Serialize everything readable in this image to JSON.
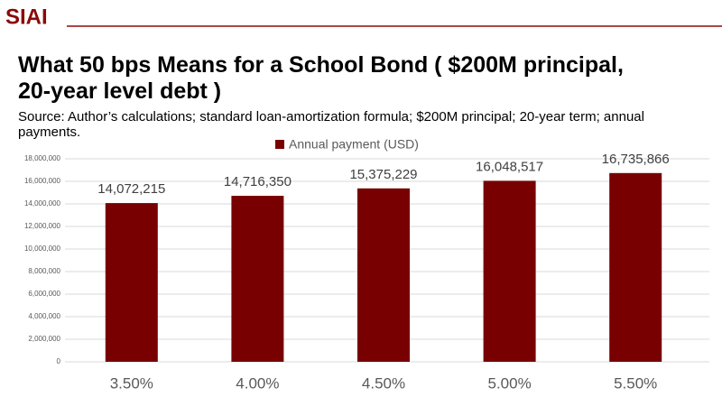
{
  "logo": "SIAI",
  "chart_data": {
    "type": "bar",
    "title": "What 50 bps Means for a School Bond ( $200M principal, 20-year level debt )",
    "subtitle": "Source: Author’s calculations; standard loan-amortization formula; $200M principal; 20-year term; annual payments.",
    "categories": [
      "3.50%",
      "4.00%",
      "4.50%",
      "5.00%",
      "5.50%"
    ],
    "series": [
      {
        "name": "Annual payment (USD)",
        "color": "#780000",
        "values": [
          14072215,
          14716350,
          15375229,
          16048517,
          16735866
        ],
        "value_labels": [
          "14,072,215",
          "14,716,350",
          "15,375,229",
          "16,048,517",
          "16,735,866"
        ]
      }
    ],
    "ylim": [
      0,
      18000000
    ],
    "yticks": [
      0,
      {
        "value": 2000000,
        "label": "2,000,000"
      },
      {
        "value": 4000000,
        "label": "4,000,000"
      },
      {
        "value": 6000000,
        "label": "6,000,000"
      },
      {
        "value": 8000000,
        "label": "8,000,000"
      },
      {
        "value": 10000000,
        "label": "10,000,000"
      },
      {
        "value": 12000000,
        "label": "12,000,000"
      },
      {
        "value": 14000000,
        "label": "14,000,000"
      },
      {
        "value": 16000000,
        "label": "16,000,000"
      },
      {
        "value": 18000000,
        "label": "18,000,000"
      }
    ],
    "grid": true,
    "legend": "top"
  }
}
